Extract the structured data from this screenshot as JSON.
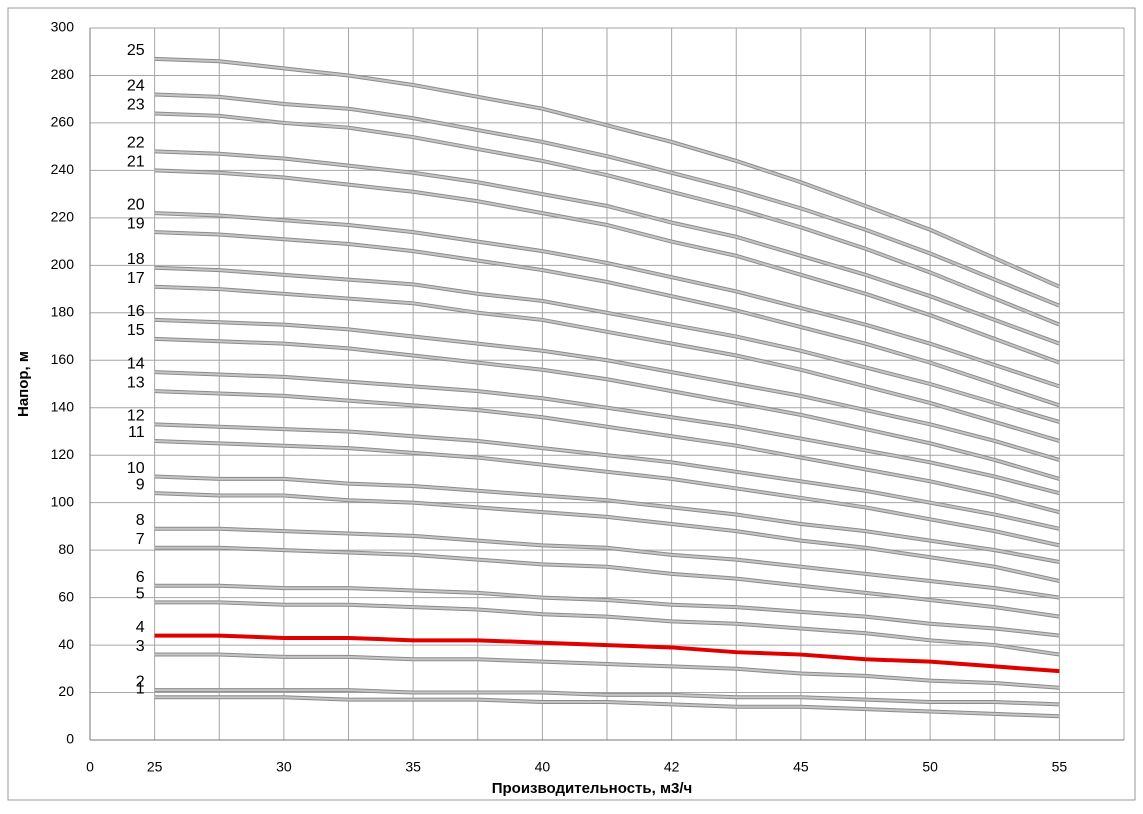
{
  "chart_data": {
    "type": "line",
    "x_label": "Производительность, м3/ч",
    "y_label": "Напор, м",
    "categories": [
      "0",
      "25",
      null,
      "30",
      null,
      "35",
      null,
      "40",
      null,
      "42",
      null,
      "45",
      null,
      "50",
      null,
      "55",
      null
    ],
    "ylim": [
      0,
      300
    ],
    "yticks": [
      0,
      20,
      40,
      60,
      80,
      100,
      120,
      140,
      160,
      180,
      200,
      220,
      240,
      260,
      280,
      300
    ],
    "grid": true,
    "series": [
      {
        "name": "1",
        "color": "#c4c4c4",
        "values": [
          null,
          18,
          18,
          18,
          17,
          17,
          17,
          16,
          16,
          15,
          14,
          14,
          13,
          12,
          11,
          10,
          null
        ]
      },
      {
        "name": "2",
        "color": "#c4c4c4",
        "values": [
          null,
          21,
          21,
          21,
          21,
          20,
          20,
          20,
          19,
          19,
          18,
          18,
          17,
          16,
          16,
          15,
          null
        ]
      },
      {
        "name": "3",
        "color": "#c4c4c4",
        "values": [
          null,
          36,
          36,
          35,
          35,
          34,
          34,
          33,
          32,
          31,
          30,
          28,
          27,
          25,
          24,
          22,
          null
        ]
      },
      {
        "name": "4",
        "color": "#e00000",
        "values": [
          null,
          44,
          44,
          43,
          43,
          42,
          42,
          41,
          40,
          39,
          37,
          36,
          34,
          33,
          31,
          29,
          null
        ]
      },
      {
        "name": "5",
        "color": "#c4c4c4",
        "values": [
          null,
          58,
          58,
          57,
          57,
          56,
          55,
          53,
          52,
          50,
          49,
          47,
          45,
          42,
          40,
          36,
          null
        ]
      },
      {
        "name": "6",
        "color": "#c4c4c4",
        "values": [
          null,
          65,
          65,
          64,
          64,
          63,
          62,
          60,
          59,
          57,
          56,
          54,
          52,
          49,
          47,
          44,
          null
        ]
      },
      {
        "name": "7",
        "color": "#c4c4c4",
        "values": [
          null,
          81,
          81,
          80,
          79,
          78,
          76,
          74,
          73,
          70,
          68,
          65,
          62,
          59,
          56,
          52,
          null
        ]
      },
      {
        "name": "8",
        "color": "#c4c4c4",
        "values": [
          null,
          89,
          89,
          88,
          87,
          86,
          84,
          82,
          81,
          78,
          76,
          73,
          70,
          67,
          64,
          60,
          null
        ]
      },
      {
        "name": "9",
        "color": "#c4c4c4",
        "values": [
          null,
          104,
          103,
          103,
          101,
          100,
          98,
          96,
          94,
          91,
          88,
          84,
          81,
          77,
          73,
          67,
          null
        ]
      },
      {
        "name": "10",
        "color": "#c4c4c4",
        "values": [
          null,
          111,
          110,
          110,
          108,
          107,
          105,
          103,
          101,
          98,
          95,
          91,
          88,
          84,
          80,
          75,
          null
        ]
      },
      {
        "name": "11",
        "color": "#c4c4c4",
        "values": [
          null,
          126,
          125,
          124,
          123,
          121,
          119,
          116,
          113,
          110,
          106,
          102,
          98,
          93,
          88,
          82,
          null
        ]
      },
      {
        "name": "12",
        "color": "#c4c4c4",
        "values": [
          null,
          133,
          132,
          131,
          130,
          128,
          126,
          123,
          120,
          117,
          113,
          109,
          105,
          100,
          95,
          89,
          null
        ]
      },
      {
        "name": "13",
        "color": "#c4c4c4",
        "values": [
          null,
          147,
          146,
          145,
          143,
          141,
          139,
          136,
          132,
          128,
          124,
          119,
          114,
          109,
          103,
          96,
          null
        ]
      },
      {
        "name": "14",
        "color": "#c4c4c4",
        "values": [
          null,
          155,
          154,
          153,
          151,
          149,
          147,
          144,
          140,
          136,
          132,
          127,
          122,
          117,
          111,
          104,
          null
        ]
      },
      {
        "name": "15",
        "color": "#c4c4c4",
        "values": [
          null,
          169,
          168,
          167,
          165,
          162,
          159,
          156,
          152,
          147,
          142,
          137,
          131,
          125,
          118,
          110,
          null
        ]
      },
      {
        "name": "16",
        "color": "#c4c4c4",
        "values": [
          null,
          177,
          176,
          175,
          173,
          170,
          167,
          164,
          160,
          155,
          150,
          145,
          139,
          133,
          126,
          118,
          null
        ]
      },
      {
        "name": "17",
        "color": "#c4c4c4",
        "values": [
          null,
          191,
          190,
          188,
          186,
          184,
          180,
          177,
          172,
          167,
          162,
          156,
          149,
          142,
          134,
          126,
          null
        ]
      },
      {
        "name": "18",
        "color": "#c4c4c4",
        "values": [
          null,
          199,
          198,
          196,
          194,
          192,
          188,
          185,
          180,
          175,
          170,
          164,
          157,
          150,
          142,
          134,
          null
        ]
      },
      {
        "name": "19",
        "color": "#c4c4c4",
        "values": [
          null,
          214,
          213,
          211,
          209,
          206,
          202,
          198,
          193,
          187,
          181,
          174,
          167,
          159,
          150,
          141,
          null
        ]
      },
      {
        "name": "20",
        "color": "#c4c4c4",
        "values": [
          null,
          222,
          221,
          219,
          217,
          214,
          210,
          206,
          201,
          195,
          189,
          182,
          175,
          167,
          158,
          149,
          null
        ]
      },
      {
        "name": "21",
        "color": "#c4c4c4",
        "values": [
          null,
          240,
          239,
          237,
          234,
          231,
          227,
          222,
          217,
          210,
          204,
          196,
          188,
          179,
          169,
          159,
          null
        ]
      },
      {
        "name": "22",
        "color": "#c4c4c4",
        "values": [
          null,
          248,
          247,
          245,
          242,
          239,
          235,
          230,
          225,
          218,
          212,
          204,
          196,
          187,
          177,
          167,
          null
        ]
      },
      {
        "name": "23",
        "color": "#c4c4c4",
        "values": [
          null,
          264,
          263,
          260,
          258,
          254,
          249,
          244,
          238,
          231,
          224,
          216,
          207,
          197,
          186,
          175,
          null
        ]
      },
      {
        "name": "24",
        "color": "#c4c4c4",
        "values": [
          null,
          272,
          271,
          268,
          266,
          262,
          257,
          252,
          246,
          239,
          232,
          224,
          215,
          205,
          194,
          183,
          null
        ]
      },
      {
        "name": "25",
        "color": "#c4c4c4",
        "values": [
          null,
          287,
          286,
          283,
          280,
          276,
          271,
          266,
          259,
          252,
          244,
          235,
          225,
          215,
          203,
          191,
          null
        ]
      }
    ]
  }
}
